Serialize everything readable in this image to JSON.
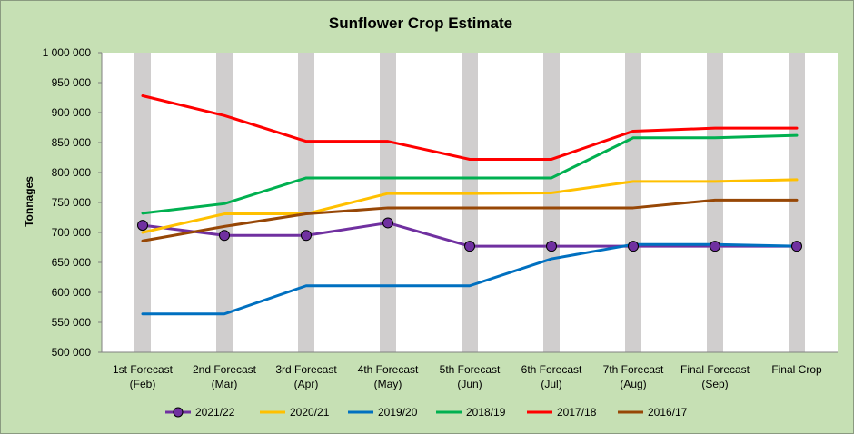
{
  "chart_data": {
    "type": "line",
    "title": "Sunflower Crop Estimate",
    "xlabel": "",
    "ylabel": "Tonnages",
    "ylim": [
      500000,
      1000000
    ],
    "yticks": [
      500000,
      550000,
      600000,
      650000,
      700000,
      750000,
      800000,
      850000,
      900000,
      950000,
      1000000
    ],
    "ytick_labels": [
      "500 000",
      "550 000",
      "600 000",
      "650 000",
      "700 000",
      "750 000",
      "800 000",
      "850 000",
      "900 000",
      "950 000",
      "1 000 000"
    ],
    "categories": [
      [
        "1st Forecast",
        "(Feb)"
      ],
      [
        "2nd Forecast",
        "(Mar)"
      ],
      [
        "3rd Forecast",
        "(Apr)"
      ],
      [
        "4th Forecast",
        "(May)"
      ],
      [
        "5th Forecast",
        "(Jun)"
      ],
      [
        "6th Forecast",
        "(Jul)"
      ],
      [
        "7th Forecast",
        "(Aug)"
      ],
      [
        "Final Forecast",
        "(Sep)"
      ],
      [
        "Final Crop",
        ""
      ]
    ],
    "grid": "vertical grey bands at categories",
    "legend": "bottom",
    "series": [
      {
        "name": "2021/22",
        "color": "#7030a0",
        "markers": true,
        "values": [
          712000,
          695000,
          695000,
          716000,
          677000,
          677000,
          677000,
          677000,
          677000
        ]
      },
      {
        "name": "2020/21",
        "color": "#ffc000",
        "markers": false,
        "values": [
          700000,
          731000,
          731000,
          765000,
          765000,
          766000,
          785000,
          785000,
          788000
        ]
      },
      {
        "name": "2019/20",
        "color": "#0070c0",
        "markers": false,
        "values": [
          564000,
          564000,
          611000,
          611000,
          611000,
          656000,
          680000,
          680000,
          677000
        ]
      },
      {
        "name": "2018/19",
        "color": "#00b050",
        "markers": false,
        "values": [
          732000,
          748000,
          791000,
          791000,
          791000,
          791000,
          858000,
          858000,
          862000
        ]
      },
      {
        "name": "2017/18",
        "color": "#ff0000",
        "markers": false,
        "values": [
          928000,
          895000,
          852000,
          852000,
          822000,
          822000,
          869000,
          874000,
          874000
        ]
      },
      {
        "name": "2016/17",
        "color": "#974706",
        "markers": false,
        "values": [
          686000,
          710000,
          731000,
          741000,
          741000,
          741000,
          741000,
          754000,
          754000
        ]
      }
    ]
  }
}
